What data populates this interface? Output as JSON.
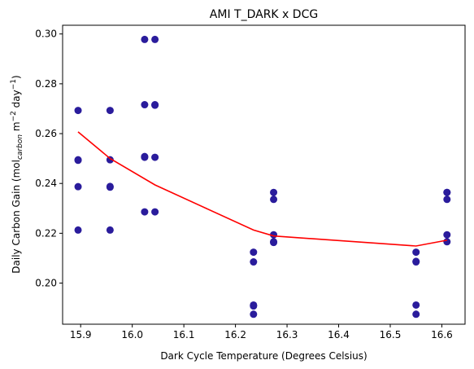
{
  "chart_data": {
    "type": "scatter",
    "title": "AMI T_DARK x DCG",
    "xlabel": "Dark Cycle Temperature (Degrees Celsius)",
    "ylabel": {
      "prefix": "Daily Carbon Gain (mol",
      "sub": "carbon",
      "mid": " m",
      "sup1": "−2",
      "mid2": " day",
      "sup2": "−1",
      "suffix": ")"
    },
    "xlim": [
      15.865,
      16.645
    ],
    "ylim": [
      0.1835,
      0.3035
    ],
    "x_ticks": [
      "15.9",
      "16.0",
      "16.1",
      "16.2",
      "16.3",
      "16.4",
      "16.5",
      "16.6"
    ],
    "y_ticks": [
      "0.20",
      "0.22",
      "0.24",
      "0.26",
      "0.28",
      "0.30"
    ],
    "grid": false,
    "colors": {
      "points": "#2a1c9c",
      "line": "#ff0000"
    },
    "series": [
      {
        "type": "scatter",
        "points": [
          [
            15.895,
            0.2693
          ],
          [
            15.895,
            0.2495
          ],
          [
            15.895,
            0.2493
          ],
          [
            15.895,
            0.2387
          ],
          [
            15.895,
            0.2213
          ],
          [
            15.957,
            0.2693
          ],
          [
            15.957,
            0.2495
          ],
          [
            15.957,
            0.2388
          ],
          [
            15.957,
            0.2385
          ],
          [
            15.957,
            0.2213
          ],
          [
            16.024,
            0.2978
          ],
          [
            16.024,
            0.2716
          ],
          [
            16.024,
            0.2508
          ],
          [
            16.024,
            0.2505
          ],
          [
            16.024,
            0.2286
          ],
          [
            16.044,
            0.2978
          ],
          [
            16.044,
            0.2716
          ],
          [
            16.044,
            0.2714
          ],
          [
            16.044,
            0.2505
          ],
          [
            16.044,
            0.2286
          ],
          [
            16.235,
            0.2124
          ],
          [
            16.235,
            0.2085
          ],
          [
            16.235,
            0.1912
          ],
          [
            16.235,
            0.1908
          ],
          [
            16.235,
            0.1875
          ],
          [
            16.274,
            0.2364
          ],
          [
            16.274,
            0.2336
          ],
          [
            16.274,
            0.2194
          ],
          [
            16.274,
            0.2166
          ],
          [
            16.274,
            0.2163
          ],
          [
            16.55,
            0.2124
          ],
          [
            16.55,
            0.2085
          ],
          [
            16.55,
            0.2087
          ],
          [
            16.55,
            0.1912
          ],
          [
            16.55,
            0.1875
          ],
          [
            16.61,
            0.2364
          ],
          [
            16.61,
            0.2364
          ],
          [
            16.61,
            0.2336
          ],
          [
            16.61,
            0.2194
          ],
          [
            16.61,
            0.2166
          ]
        ]
      },
      {
        "type": "line",
        "points": [
          [
            15.895,
            0.2607
          ],
          [
            15.957,
            0.25
          ],
          [
            16.044,
            0.2394
          ],
          [
            16.235,
            0.2213
          ],
          [
            16.274,
            0.2189
          ],
          [
            16.55,
            0.2149
          ],
          [
            16.61,
            0.2172
          ]
        ]
      }
    ]
  }
}
